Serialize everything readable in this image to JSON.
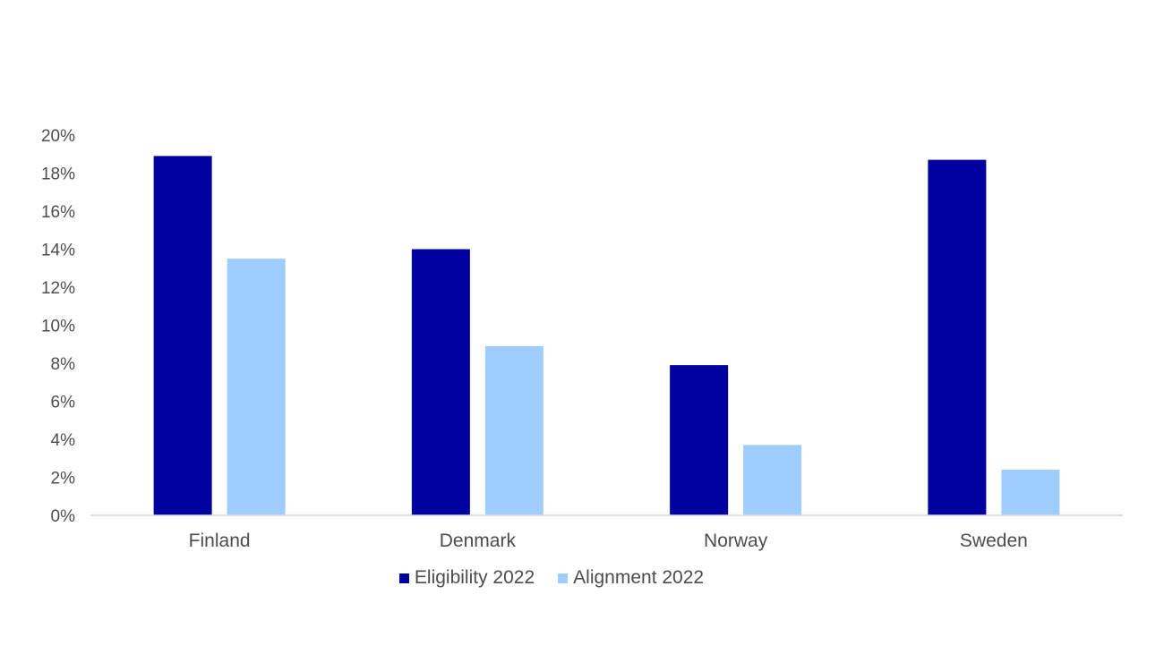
{
  "chart_data": {
    "type": "bar",
    "categories": [
      "Finland",
      "Denmark",
      "Norway",
      "Sweden"
    ],
    "series": [
      {
        "name": "Eligibility 2022",
        "color": "#00009f",
        "values": [
          18.9,
          14.0,
          7.9,
          18.7
        ]
      },
      {
        "name": "Alignment 2022",
        "color": "#9fcdff",
        "values": [
          13.5,
          8.9,
          3.7,
          2.4
        ]
      }
    ],
    "ylim": [
      0,
      20
    ],
    "yticks": [
      0,
      2,
      4,
      6,
      8,
      10,
      12,
      14,
      16,
      18,
      20
    ],
    "ytick_labels": [
      "0%",
      "2%",
      "4%",
      "6%",
      "8%",
      "10%",
      "12%",
      "14%",
      "16%",
      "18%",
      "20%"
    ],
    "grid": false,
    "legend_position": "bottom"
  }
}
